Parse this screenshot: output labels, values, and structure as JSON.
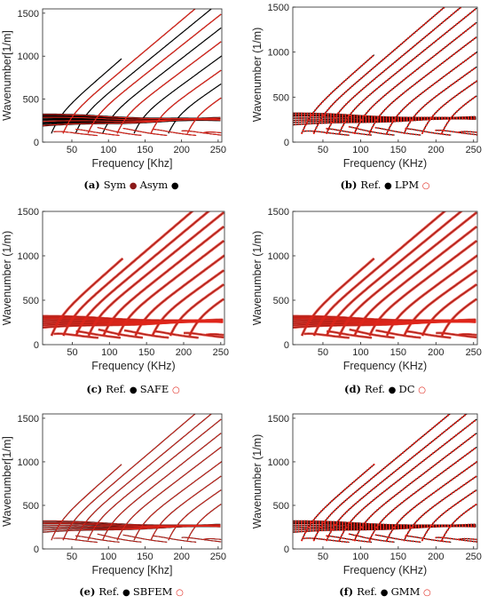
{
  "colors": {
    "reference": "#000000",
    "sym": "#8b1a1a",
    "compare": "#e0251b",
    "axis": "#262626"
  },
  "chart_data": [
    {
      "type": "line",
      "xlabel": "Frequency [Khz]",
      "ylabel": "Wavenumber[1/m]",
      "caption": {
        "id": "(a)",
        "parts": [
          {
            "text": "Sym",
            "marker": "filled-red"
          },
          {
            "text": "Asym",
            "marker": "filled-black"
          }
        ]
      },
      "xlim": [
        10,
        255
      ],
      "ylim": [
        0,
        1550
      ],
      "xticks": [
        50,
        100,
        150,
        200,
        250
      ],
      "yticks": [
        0,
        500,
        1000,
        1500
      ],
      "series": [
        {
          "name": "Sym",
          "style": "red-solid"
        },
        {
          "name": "Asym",
          "style": "black-solid"
        }
      ]
    },
    {
      "type": "line",
      "xlabel": "Frequency (KHz)",
      "ylabel": "Wavenumber (1/m)",
      "caption": {
        "id": "(b)",
        "parts": [
          {
            "text": "Ref.",
            "marker": "filled-black"
          },
          {
            "text": "LPM",
            "marker": "open-red"
          }
        ]
      },
      "xlim": [
        10,
        255
      ],
      "ylim": [
        0,
        1500
      ],
      "xticks": [
        50,
        100,
        150,
        200,
        250
      ],
      "yticks": [
        0,
        500,
        1000,
        1500
      ],
      "series": [
        {
          "name": "Ref.",
          "style": "black-solid"
        },
        {
          "name": "LPM",
          "style": "red-open-dotted"
        }
      ]
    },
    {
      "type": "line",
      "xlabel": "Frequency (KHz)",
      "ylabel": "Wavenumber (1/m)",
      "caption": {
        "id": "(c)",
        "parts": [
          {
            "text": "Ref.",
            "marker": "filled-black"
          },
          {
            "text": "SAFE",
            "marker": "open-red"
          }
        ]
      },
      "xlim": [
        10,
        255
      ],
      "ylim": [
        0,
        1500
      ],
      "xticks": [
        50,
        100,
        150,
        200,
        250
      ],
      "yticks": [
        0,
        500,
        1000,
        1500
      ],
      "series": [
        {
          "name": "Ref.",
          "style": "black-solid"
        },
        {
          "name": "SAFE",
          "style": "red-thick"
        }
      ]
    },
    {
      "type": "line",
      "xlabel": "Frequency (KHz)",
      "ylabel": "Wavenumber (1/m)",
      "caption": {
        "id": "(d)",
        "parts": [
          {
            "text": "Ref.",
            "marker": "filled-black"
          },
          {
            "text": "DC",
            "marker": "open-red"
          }
        ]
      },
      "xlim": [
        10,
        255
      ],
      "ylim": [
        0,
        1500
      ],
      "xticks": [
        50,
        100,
        150,
        200,
        250
      ],
      "yticks": [
        0,
        500,
        1000,
        1500
      ],
      "series": [
        {
          "name": "Ref.",
          "style": "black-solid"
        },
        {
          "name": "DC",
          "style": "red-thick"
        }
      ]
    },
    {
      "type": "line",
      "xlabel": "Frequency [Khz]",
      "ylabel": "Wavenumber[1/m]",
      "caption": {
        "id": "(e)",
        "parts": [
          {
            "text": "Ref.",
            "marker": "filled-black"
          },
          {
            "text": "SBFEM",
            "marker": "open-red"
          }
        ]
      },
      "xlim": [
        10,
        255
      ],
      "ylim": [
        0,
        1550
      ],
      "xticks": [
        50,
        100,
        150,
        200,
        250
      ],
      "yticks": [
        0,
        500,
        1000,
        1500
      ],
      "series": [
        {
          "name": "Ref.",
          "style": "black-solid"
        },
        {
          "name": "SBFEM",
          "style": "red-thin"
        }
      ]
    },
    {
      "type": "line",
      "xlabel": "Frequency (KHz)",
      "ylabel": "Wavenumber (1/m)",
      "caption": {
        "id": "(f)",
        "parts": [
          {
            "text": "Ref.",
            "marker": "filled-black"
          },
          {
            "text": "GMM",
            "marker": "open-red"
          }
        ]
      },
      "xlim": [
        10,
        255
      ],
      "ylim": [
        0,
        1550
      ],
      "xticks": [
        50,
        100,
        150,
        200,
        250
      ],
      "yticks": [
        0,
        500,
        1000,
        1500
      ],
      "series": [
        {
          "name": "Ref.",
          "style": "black-solid"
        },
        {
          "name": "GMM",
          "style": "red-open-dotted"
        }
      ]
    }
  ],
  "modes": {
    "propagating": [
      {
        "x0": 22,
        "slope": 7.4,
        "max_x": 118
      },
      {
        "x0": 38,
        "slope": 7.15,
        "max_x": 255
      },
      {
        "x0": 55,
        "slope": 6.95,
        "max_x": 255
      },
      {
        "x0": 72,
        "slope": 6.75,
        "max_x": 255
      },
      {
        "x0": 92,
        "slope": 6.6,
        "max_x": 255
      },
      {
        "x0": 112,
        "slope": 6.4,
        "max_x": 255
      },
      {
        "x0": 135,
        "slope": 6.2,
        "max_x": 255
      },
      {
        "x0": 158,
        "slope": 6.0,
        "max_x": 255
      },
      {
        "x0": 182,
        "slope": 5.8,
        "max_x": 255
      },
      {
        "x0": 208,
        "slope": 5.6,
        "max_x": 255
      }
    ],
    "flat": [
      {
        "base": 318,
        "slope": -0.25
      },
      {
        "base": 300,
        "slope": -0.2
      },
      {
        "base": 285,
        "slope": -0.15
      },
      {
        "base": 262,
        "slope": -0.05
      },
      {
        "base": 238,
        "slope": 0.08
      },
      {
        "base": 215,
        "slope": 0.2
      },
      {
        "base": 190,
        "slope": 0.35
      }
    ],
    "cutoff": [
      {
        "x0": 25,
        "k0": 120
      },
      {
        "x0": 55,
        "k0": 150
      },
      {
        "x0": 85,
        "k0": 170
      },
      {
        "x0": 120,
        "k0": 160
      },
      {
        "x0": 160,
        "k0": 150
      },
      {
        "x0": 200,
        "k0": 130
      },
      {
        "x0": 230,
        "k0": 110
      }
    ]
  }
}
